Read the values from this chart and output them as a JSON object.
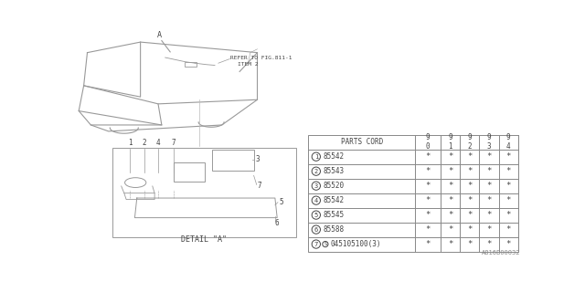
{
  "bg_color": "#ffffff",
  "watermark": "A816B00032",
  "table": {
    "header": "PARTS CORD",
    "year_cols": [
      "9\n0",
      "9\n1",
      "9\n2",
      "9\n3",
      "9\n4"
    ],
    "rows": [
      {
        "num": "1",
        "part": "85542",
        "is_s": false
      },
      {
        "num": "2",
        "part": "85543",
        "is_s": false
      },
      {
        "num": "3",
        "part": "85520",
        "is_s": false
      },
      {
        "num": "4",
        "part": "85542",
        "is_s": false
      },
      {
        "num": "5",
        "part": "85545",
        "is_s": false
      },
      {
        "num": "6",
        "part": "85588",
        "is_s": false
      },
      {
        "num": "7",
        "part": "045105100(3)",
        "is_s": true
      }
    ]
  },
  "refer_line1": "REFER TO FIG.811-1",
  "refer_line2": "ITEM 2",
  "antenna_label": "A",
  "detail_label": "DETAIL \"A\"",
  "car_color": "#999999",
  "text_color": "#444444",
  "line_color": "#888888"
}
